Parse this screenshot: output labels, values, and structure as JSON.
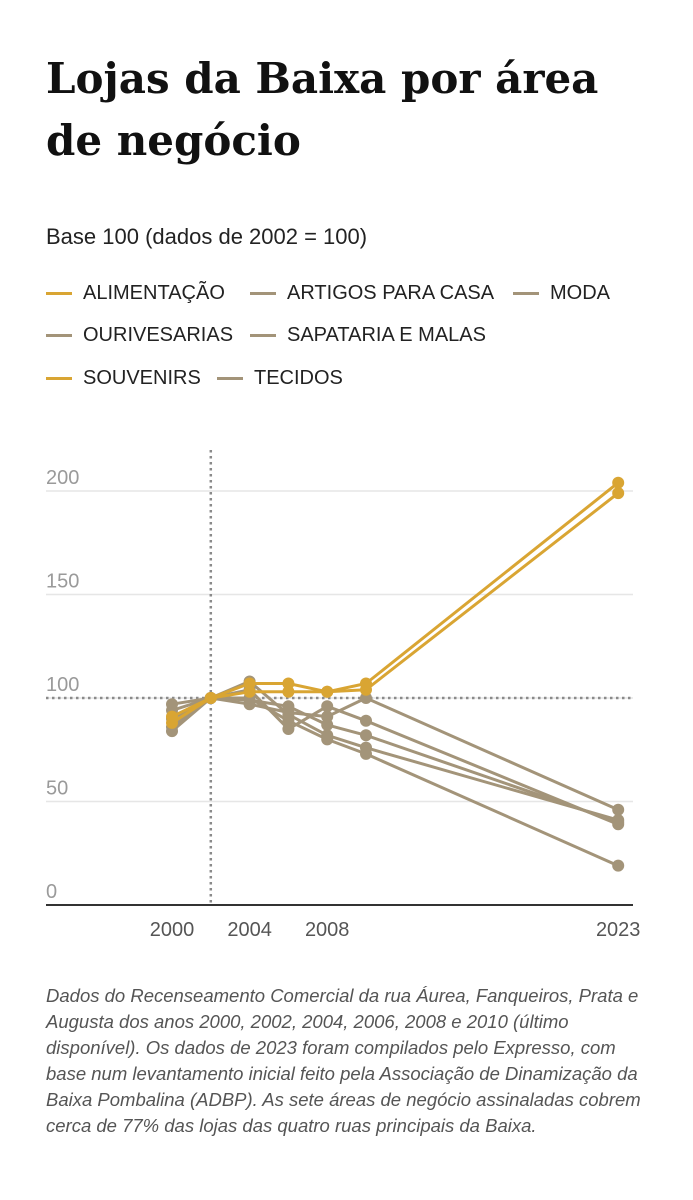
{
  "header": {
    "title": "Lojas da Baixa por área de negócio",
    "subtitle": "Base 100 (dados de 2002 = 100)"
  },
  "colors": {
    "highlight": "#d9a533",
    "muted": "#a39479",
    "grid": "#e6e6e6",
    "reference": "#8a8a8a",
    "axis": "#333333"
  },
  "chart_data": {
    "type": "line",
    "title": "Lojas da Baixa por área de negócio",
    "subtitle": "Base 100 (dados de 2002 = 100)",
    "xlabel": "",
    "ylabel": "",
    "x": [
      2000,
      2002,
      2004,
      2006,
      2008,
      2010,
      2023
    ],
    "xticks": [
      "2000",
      "2004",
      "2008",
      "2023"
    ],
    "yticks": [
      "0",
      "50",
      "100",
      "150",
      "200"
    ],
    "ylim": [
      0,
      210
    ],
    "grid": true,
    "legend_position": "top",
    "reference_lines": {
      "x": 2002,
      "y": 100
    },
    "series": [
      {
        "name": "ALIMENTAÇÃO",
        "highlight": true,
        "values": [
          88,
          100,
          107,
          107,
          103,
          104,
          199
        ]
      },
      {
        "name": "ARTIGOS PARA CASA",
        "highlight": false,
        "values": [
          97,
          100,
          97,
          93,
          91,
          100,
          46
        ]
      },
      {
        "name": "MODA",
        "highlight": false,
        "values": [
          86,
          100,
          104,
          85,
          96,
          89,
          39
        ]
      },
      {
        "name": "OURIVESARIAS",
        "highlight": false,
        "values": [
          84,
          100,
          108,
          92,
          82,
          76,
          41
        ]
      },
      {
        "name": "SAPATARIA E MALAS",
        "highlight": false,
        "values": [
          90,
          100,
          99,
          96,
          87,
          82,
          40
        ]
      },
      {
        "name": "SOUVENIRS",
        "highlight": true,
        "values": [
          91,
          100,
          103,
          103,
          103,
          107,
          204
        ]
      },
      {
        "name": "TECIDOS",
        "highlight": false,
        "values": [
          94,
          100,
          100,
          89,
          80,
          73,
          19
        ]
      }
    ]
  },
  "footnote": "Dados do Recenseamento Comercial da rua Áurea, Fanqueiros, Prata e Augusta dos anos 2000, 2002, 2004, 2006, 2008 e 2010 (último disponível). Os dados de 2023 foram compilados pelo Expresso, com base num levantamento inicial feito pela Associação de Dinamização da Baixa Pombalina (ADBP). As sete áreas de negócio assinaladas cobrem cerca de 77% das lojas das quatro ruas principais da Baixa."
}
